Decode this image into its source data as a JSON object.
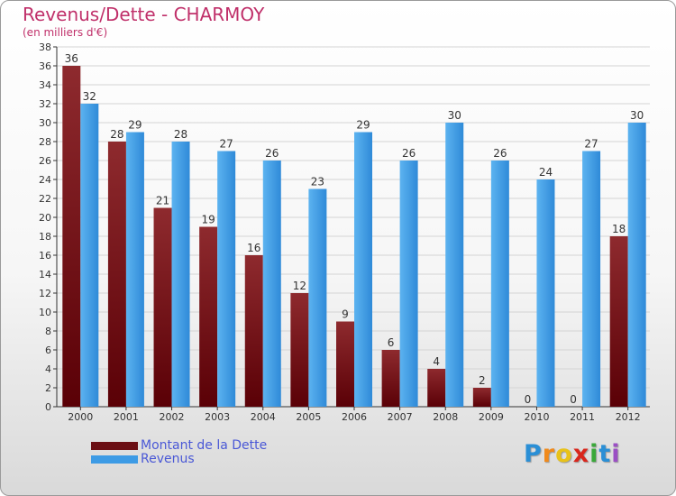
{
  "colors": {
    "title": "#c0306a",
    "debt": "#6b0f14",
    "revenue": "#3d9be5",
    "legend_text": "#4a58d6"
  },
  "chart_data": {
    "type": "bar",
    "title": "Revenus/Dette - CHARMOY",
    "subtitle": "(en milliers d'€)",
    "xlabel": "",
    "ylabel": "",
    "ylim": [
      0,
      38
    ],
    "ytick_step": 2,
    "grid": true,
    "legend_position": "bottom-left",
    "categories": [
      "2000",
      "2001",
      "2002",
      "2003",
      "2004",
      "2005",
      "2006",
      "2007",
      "2008",
      "2009",
      "2010",
      "2011",
      "2012"
    ],
    "series": [
      {
        "name": "Montant de la Dette",
        "values": [
          36,
          28,
          21,
          19,
          16,
          12,
          9,
          6,
          4,
          2,
          0,
          0,
          18
        ]
      },
      {
        "name": "Revenus",
        "values": [
          32,
          29,
          28,
          27,
          26,
          23,
          29,
          26,
          30,
          26,
          24,
          27,
          30
        ]
      }
    ]
  },
  "brand": [
    "P",
    "r",
    "o",
    "x",
    "i",
    "t",
    "i"
  ]
}
